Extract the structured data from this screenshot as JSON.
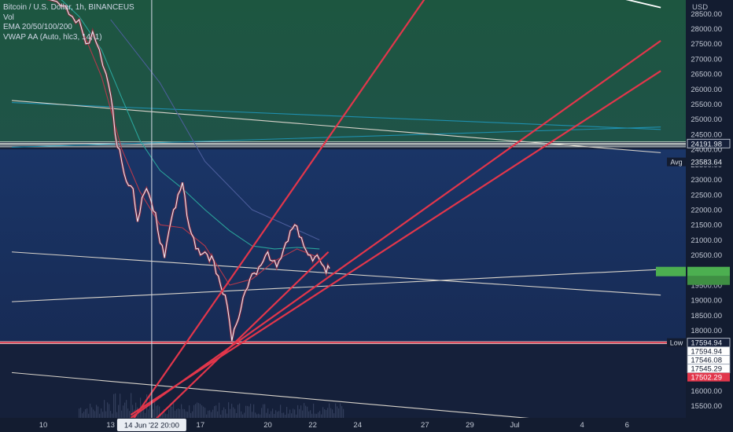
{
  "legend": {
    "symbol_line": "Bitcoin / U.S. Dollar, 1h, BINANCEUS",
    "volume_line": "Vol",
    "ema_line": "EMA 20/50/100/200",
    "vwap_line": "VWAP AA (Auto, hlc3, 14, 1)"
  },
  "colors": {
    "background": "#15203a",
    "upper_zone": "#1f5245",
    "lower_zone": "#193063",
    "drawing_red": "#e2364b",
    "drawing_line": "#d9d4cb",
    "ema_teal": "#2aa39a",
    "ema_red": "#b4384b",
    "price_tag_green": "#4caf50",
    "low_tag_red": "#e2364b"
  },
  "chart_data": {
    "type": "line",
    "currency": "USD",
    "ylim": [
      15100,
      28950
    ],
    "y_ticks": [
      15500,
      16000,
      16500,
      17000,
      17500,
      18000,
      18500,
      19000,
      19500,
      20000,
      20500,
      21000,
      21500,
      22000,
      22500,
      23000,
      23500,
      24000,
      24500,
      25000,
      25500,
      26000,
      26500,
      27000,
      27500,
      28000,
      28500
    ],
    "x_ticks": [
      {
        "day": 10,
        "label": "10"
      },
      {
        "day": 13,
        "label": "13"
      },
      {
        "day": 17,
        "label": "17"
      },
      {
        "day": 20,
        "label": "20"
      },
      {
        "day": 22,
        "label": "22"
      },
      {
        "day": 24,
        "label": "24"
      },
      {
        "day": 27,
        "label": "27"
      },
      {
        "day": 29,
        "label": "29"
      },
      {
        "day": 31,
        "label": "Jul"
      },
      {
        "day": 34,
        "label": "4"
      },
      {
        "day": 36,
        "label": "6"
      }
    ],
    "crosshair_label": "14 Jun '22  20:00",
    "crosshair_day": 14.83,
    "price_series": [
      {
        "day": 8.6,
        "price": 29900
      },
      {
        "day": 9.2,
        "price": 29600
      },
      {
        "day": 9.7,
        "price": 29200
      },
      {
        "day": 10.1,
        "price": 29000
      },
      {
        "day": 10.6,
        "price": 28900
      },
      {
        "day": 11.0,
        "price": 28750
      },
      {
        "day": 11.3,
        "price": 28400
      },
      {
        "day": 11.6,
        "price": 28300
      },
      {
        "day": 11.9,
        "price": 27500
      },
      {
        "day": 12.2,
        "price": 27900
      },
      {
        "day": 12.5,
        "price": 27300
      },
      {
        "day": 12.8,
        "price": 26500
      },
      {
        "day": 13.0,
        "price": 25800
      },
      {
        "day": 13.2,
        "price": 24500
      },
      {
        "day": 13.4,
        "price": 24000
      },
      {
        "day": 13.6,
        "price": 23200
      },
      {
        "day": 13.8,
        "price": 22800
      },
      {
        "day": 14.0,
        "price": 22700
      },
      {
        "day": 14.2,
        "price": 21600
      },
      {
        "day": 14.4,
        "price": 22400
      },
      {
        "day": 14.6,
        "price": 22700
      },
      {
        "day": 14.8,
        "price": 22300
      },
      {
        "day": 15.0,
        "price": 21900
      },
      {
        "day": 15.2,
        "price": 20900
      },
      {
        "day": 15.4,
        "price": 20400
      },
      {
        "day": 15.6,
        "price": 21300
      },
      {
        "day": 15.8,
        "price": 22000
      },
      {
        "day": 16.0,
        "price": 22500
      },
      {
        "day": 16.2,
        "price": 22900
      },
      {
        "day": 16.4,
        "price": 21800
      },
      {
        "day": 16.6,
        "price": 21200
      },
      {
        "day": 16.8,
        "price": 20700
      },
      {
        "day": 17.0,
        "price": 20500
      },
      {
        "day": 17.2,
        "price": 20600
      },
      {
        "day": 17.4,
        "price": 20300
      },
      {
        "day": 17.6,
        "price": 20300
      },
      {
        "day": 17.8,
        "price": 19800
      },
      {
        "day": 18.0,
        "price": 19200
      },
      {
        "day": 18.2,
        "price": 18800
      },
      {
        "day": 18.4,
        "price": 17650
      },
      {
        "day": 18.6,
        "price": 18200
      },
      {
        "day": 18.8,
        "price": 18700
      },
      {
        "day": 19.0,
        "price": 19300
      },
      {
        "day": 19.2,
        "price": 19700
      },
      {
        "day": 19.4,
        "price": 19900
      },
      {
        "day": 19.6,
        "price": 20100
      },
      {
        "day": 19.8,
        "price": 20300
      },
      {
        "day": 20.0,
        "price": 20600
      },
      {
        "day": 20.2,
        "price": 20300
      },
      {
        "day": 20.4,
        "price": 20100
      },
      {
        "day": 20.6,
        "price": 20400
      },
      {
        "day": 20.8,
        "price": 20900
      },
      {
        "day": 21.0,
        "price": 21300
      },
      {
        "day": 21.2,
        "price": 21500
      },
      {
        "day": 21.4,
        "price": 21100
      },
      {
        "day": 21.6,
        "price": 20800
      },
      {
        "day": 21.8,
        "price": 20500
      },
      {
        "day": 22.0,
        "price": 20300
      },
      {
        "day": 22.2,
        "price": 20500
      },
      {
        "day": 22.4,
        "price": 20200
      },
      {
        "day": 22.6,
        "price": 19900
      },
      {
        "day": 22.75,
        "price": 20050
      }
    ],
    "ema_teal": [
      {
        "day": 10.6,
        "price": 29100
      },
      {
        "day": 11.6,
        "price": 28400
      },
      {
        "day": 12.6,
        "price": 27300
      },
      {
        "day": 13.5,
        "price": 25700
      },
      {
        "day": 14.3,
        "price": 24300
      },
      {
        "day": 15.2,
        "price": 23300
      },
      {
        "day": 16.2,
        "price": 22700
      },
      {
        "day": 17.2,
        "price": 22000
      },
      {
        "day": 18.3,
        "price": 21300
      },
      {
        "day": 19.3,
        "price": 20800
      },
      {
        "day": 20.3,
        "price": 20700
      },
      {
        "day": 21.3,
        "price": 20750
      },
      {
        "day": 22.3,
        "price": 20700
      }
    ],
    "ema_red": [
      {
        "day": 11.6,
        "price": 28200
      },
      {
        "day": 12.6,
        "price": 26400
      },
      {
        "day": 13.5,
        "price": 24000
      },
      {
        "day": 14.3,
        "price": 22600
      },
      {
        "day": 15.2,
        "price": 21500
      },
      {
        "day": 16.2,
        "price": 21400
      },
      {
        "day": 17.2,
        "price": 20800
      },
      {
        "day": 18.3,
        "price": 19500
      },
      {
        "day": 19.3,
        "price": 19700
      },
      {
        "day": 20.3,
        "price": 20300
      },
      {
        "day": 21.3,
        "price": 20700
      },
      {
        "day": 22.3,
        "price": 20400
      }
    ],
    "ema_blue": [
      {
        "day": 13.0,
        "price": 28300
      },
      {
        "day": 15.2,
        "price": 26200
      },
      {
        "day": 17.2,
        "price": 23600
      },
      {
        "day": 19.3,
        "price": 22000
      },
      {
        "day": 22.3,
        "price": 21000
      }
    ],
    "upper_zone_bottom": 24240,
    "lower_zone_top": 24000,
    "lower_zone_bottom": 17560,
    "horizontal_levels": [
      24245,
      24191.98,
      24140,
      24085,
      17620,
      17594.94,
      17560
    ],
    "vwap_lines": [
      {
        "from": [
          8.6,
          25550
        ],
        "to": [
          37.5,
          24660
        ]
      },
      {
        "from": [
          8.6,
          24070
        ],
        "to": [
          37.5,
          24740
        ]
      }
    ],
    "trend_lines": [
      {
        "from": [
          8.6,
          25620
        ],
        "to": [
          37.5,
          23890
        ]
      },
      {
        "from": [
          8.6,
          20600
        ],
        "to": [
          37.5,
          19170
        ]
      },
      {
        "from": [
          8.6,
          18950
        ],
        "to": [
          37.5,
          20020
        ]
      },
      {
        "from": [
          8.6,
          16600
        ],
        "to": [
          37.5,
          14700
        ]
      }
    ],
    "red_rays": [
      {
        "from": [
          14.0,
          15050
        ],
        "to": [
          27.0,
          29000
        ]
      },
      {
        "from": [
          13.9,
          15100
        ],
        "to": [
          37.5,
          27600
        ]
      },
      {
        "from": [
          13.9,
          15200
        ],
        "to": [
          37.5,
          26600
        ]
      },
      {
        "from": [
          15.0,
          15050
        ],
        "to": [
          22.7,
          20600
        ]
      }
    ],
    "white_ray": {
      "from": [
        35.5,
        29050
      ],
      "to": [
        37.5,
        28700
      ]
    },
    "price_tags": [
      {
        "label": "24191.98",
        "price": 24191.98,
        "kind": "dark"
      },
      {
        "label": "23583.64",
        "price": 23583.64,
        "kind": "plain"
      },
      {
        "label": "17594.94",
        "price": 17594.94,
        "kind": "dark"
      },
      {
        "label": "17594.94",
        "price": 17594.94,
        "kind": "white"
      },
      {
        "label": "17546.08",
        "price": 17546.08,
        "kind": "white"
      },
      {
        "label": "17545.29",
        "price": 17545.29,
        "kind": "white"
      },
      {
        "label": "17502.29",
        "price": 17502.29,
        "kind": "red"
      }
    ],
    "side_labels": [
      {
        "label": "Avg",
        "price": 23583.64
      },
      {
        "label": "Low",
        "price": 17594.94
      }
    ]
  }
}
